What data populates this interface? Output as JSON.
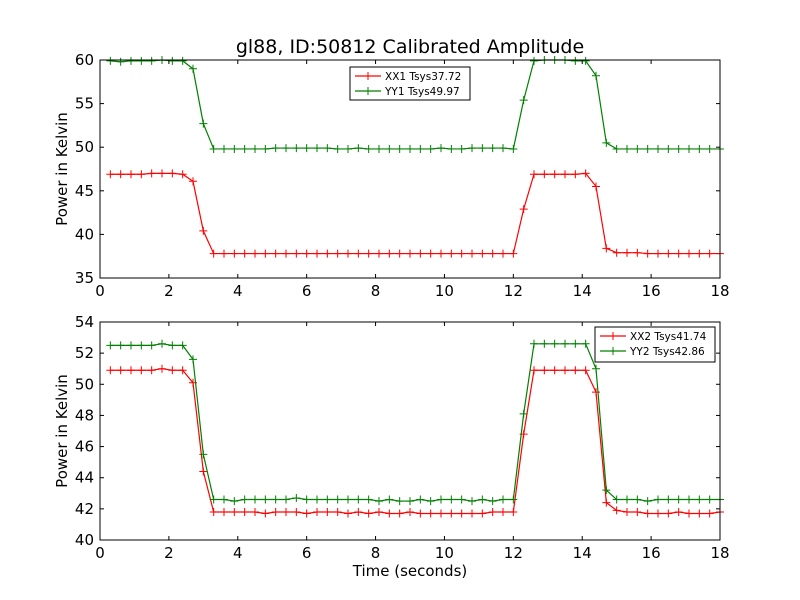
{
  "figure": {
    "title": "gl88, ID:50812 Calibrated Amplitude",
    "xlabel": "Time (seconds)"
  },
  "chart_data": [
    {
      "type": "line",
      "ylabel": "Power in Kelvin",
      "xlim": [
        0,
        18
      ],
      "ylim": [
        35,
        60
      ],
      "xticks": [
        "0",
        "2",
        "4",
        "6",
        "8",
        "10",
        "12",
        "14",
        "16",
        "18"
      ],
      "yticks": [
        "35",
        "40",
        "45",
        "50",
        "55",
        "60"
      ],
      "legend_position": "top-center",
      "marker": "plus",
      "series": [
        {
          "name": "XX1 Tsys37.72",
          "color": "#ff0000",
          "x": [
            0.3,
            0.6,
            0.9,
            1.2,
            1.5,
            1.8,
            2.1,
            2.4,
            2.7,
            3.0,
            3.3,
            3.6,
            3.9,
            4.2,
            4.5,
            4.8,
            5.1,
            5.4,
            5.7,
            6.0,
            6.3,
            6.6,
            6.9,
            7.2,
            7.5,
            7.8,
            8.1,
            8.4,
            8.7,
            9.0,
            9.3,
            9.6,
            9.9,
            10.2,
            10.5,
            10.8,
            11.1,
            11.4,
            11.7,
            12.0,
            12.3,
            12.6,
            12.9,
            13.2,
            13.5,
            13.8,
            14.1,
            14.4,
            14.7,
            15.0,
            15.3,
            15.6,
            15.9,
            16.2,
            16.5,
            16.8,
            17.1,
            17.4,
            17.7,
            18.0
          ],
          "y": [
            46.9,
            46.9,
            46.9,
            46.9,
            47.0,
            47.0,
            47.0,
            46.9,
            46.1,
            40.4,
            37.8,
            37.8,
            37.8,
            37.8,
            37.8,
            37.8,
            37.8,
            37.8,
            37.8,
            37.8,
            37.8,
            37.8,
            37.8,
            37.8,
            37.8,
            37.8,
            37.8,
            37.8,
            37.8,
            37.8,
            37.8,
            37.8,
            37.8,
            37.8,
            37.8,
            37.8,
            37.8,
            37.8,
            37.8,
            37.8,
            42.9,
            46.9,
            46.9,
            46.9,
            46.9,
            46.9,
            47.0,
            45.5,
            38.4,
            37.9,
            37.9,
            37.9,
            37.8,
            37.8,
            37.8,
            37.8,
            37.8,
            37.8,
            37.8,
            37.8
          ]
        },
        {
          "name": "YY1 Tsys49.97",
          "color": "#008000",
          "x": [
            0.3,
            0.6,
            0.9,
            1.2,
            1.5,
            1.8,
            2.1,
            2.4,
            2.7,
            3.0,
            3.3,
            3.6,
            3.9,
            4.2,
            4.5,
            4.8,
            5.1,
            5.4,
            5.7,
            6.0,
            6.3,
            6.6,
            6.9,
            7.2,
            7.5,
            7.8,
            8.1,
            8.4,
            8.7,
            9.0,
            9.3,
            9.6,
            9.9,
            10.2,
            10.5,
            10.8,
            11.1,
            11.4,
            11.7,
            12.0,
            12.3,
            12.6,
            12.9,
            13.2,
            13.5,
            13.8,
            14.1,
            14.4,
            14.7,
            15.0,
            15.3,
            15.6,
            15.9,
            16.2,
            16.5,
            16.8,
            17.1,
            17.4,
            17.7,
            18.0
          ],
          "y": [
            59.9,
            59.8,
            59.9,
            59.9,
            59.9,
            60.0,
            59.9,
            59.9,
            59.0,
            52.7,
            49.8,
            49.8,
            49.8,
            49.8,
            49.8,
            49.8,
            49.9,
            49.9,
            49.9,
            49.9,
            49.9,
            49.9,
            49.8,
            49.8,
            49.9,
            49.8,
            49.8,
            49.8,
            49.8,
            49.8,
            49.8,
            49.8,
            49.9,
            49.8,
            49.8,
            49.9,
            49.9,
            49.9,
            49.9,
            49.8,
            55.4,
            59.9,
            60.0,
            60.0,
            60.0,
            59.9,
            59.9,
            58.2,
            50.5,
            49.8,
            49.8,
            49.8,
            49.8,
            49.8,
            49.8,
            49.8,
            49.8,
            49.8,
            49.8,
            49.8
          ]
        }
      ]
    },
    {
      "type": "line",
      "ylabel": "Power in Kelvin",
      "xlim": [
        0,
        18
      ],
      "ylim": [
        40,
        54
      ],
      "xticks": [
        "0",
        "2",
        "4",
        "6",
        "8",
        "10",
        "12",
        "14",
        "16",
        "18"
      ],
      "yticks": [
        "40",
        "42",
        "44",
        "46",
        "48",
        "50",
        "52",
        "54"
      ],
      "legend_position": "top-right",
      "marker": "plus",
      "series": [
        {
          "name": "XX2 Tsys41.74",
          "color": "#ff0000",
          "x": [
            0.3,
            0.6,
            0.9,
            1.2,
            1.5,
            1.8,
            2.1,
            2.4,
            2.7,
            3.0,
            3.3,
            3.6,
            3.9,
            4.2,
            4.5,
            4.8,
            5.1,
            5.4,
            5.7,
            6.0,
            6.3,
            6.6,
            6.9,
            7.2,
            7.5,
            7.8,
            8.1,
            8.4,
            8.7,
            9.0,
            9.3,
            9.6,
            9.9,
            10.2,
            10.5,
            10.8,
            11.1,
            11.4,
            11.7,
            12.0,
            12.3,
            12.6,
            12.9,
            13.2,
            13.5,
            13.8,
            14.1,
            14.4,
            14.7,
            15.0,
            15.3,
            15.6,
            15.9,
            16.2,
            16.5,
            16.8,
            17.1,
            17.4,
            17.7,
            18.0
          ],
          "y": [
            50.9,
            50.9,
            50.9,
            50.9,
            50.9,
            51.0,
            50.9,
            50.9,
            50.1,
            44.4,
            41.8,
            41.8,
            41.8,
            41.8,
            41.8,
            41.7,
            41.8,
            41.8,
            41.8,
            41.7,
            41.8,
            41.8,
            41.8,
            41.7,
            41.8,
            41.7,
            41.8,
            41.7,
            41.7,
            41.8,
            41.7,
            41.7,
            41.7,
            41.7,
            41.7,
            41.7,
            41.7,
            41.8,
            41.8,
            41.8,
            46.8,
            50.9,
            50.9,
            50.9,
            50.9,
            50.9,
            50.9,
            49.5,
            42.4,
            41.9,
            41.8,
            41.8,
            41.7,
            41.7,
            41.7,
            41.8,
            41.7,
            41.7,
            41.7,
            41.8
          ]
        },
        {
          "name": "YY2 Tsys42.86",
          "color": "#008000",
          "x": [
            0.3,
            0.6,
            0.9,
            1.2,
            1.5,
            1.8,
            2.1,
            2.4,
            2.7,
            3.0,
            3.3,
            3.6,
            3.9,
            4.2,
            4.5,
            4.8,
            5.1,
            5.4,
            5.7,
            6.0,
            6.3,
            6.6,
            6.9,
            7.2,
            7.5,
            7.8,
            8.1,
            8.4,
            8.7,
            9.0,
            9.3,
            9.6,
            9.9,
            10.2,
            10.5,
            10.8,
            11.1,
            11.4,
            11.7,
            12.0,
            12.3,
            12.6,
            12.9,
            13.2,
            13.5,
            13.8,
            14.1,
            14.4,
            14.7,
            15.0,
            15.3,
            15.6,
            15.9,
            16.2,
            16.5,
            16.8,
            17.1,
            17.4,
            17.7,
            18.0
          ],
          "y": [
            52.5,
            52.5,
            52.5,
            52.5,
            52.5,
            52.6,
            52.5,
            52.5,
            51.6,
            45.5,
            42.6,
            42.6,
            42.5,
            42.6,
            42.6,
            42.6,
            42.6,
            42.6,
            42.7,
            42.6,
            42.6,
            42.6,
            42.6,
            42.6,
            42.6,
            42.6,
            42.5,
            42.6,
            42.5,
            42.5,
            42.6,
            42.5,
            42.6,
            42.6,
            42.6,
            42.5,
            42.6,
            42.5,
            42.6,
            42.6,
            48.1,
            52.6,
            52.6,
            52.6,
            52.6,
            52.6,
            52.6,
            51.0,
            43.2,
            42.6,
            42.6,
            42.6,
            42.5,
            42.6,
            42.6,
            42.6,
            42.6,
            42.6,
            42.6,
            42.6
          ]
        }
      ]
    }
  ]
}
